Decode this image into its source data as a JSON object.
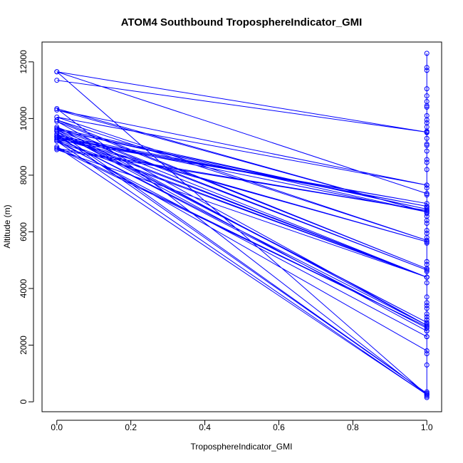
{
  "chart_data": {
    "type": "line",
    "title": "ATOM4 Southbound TroposphereIndicator_GMI",
    "xlabel": "TroposphereIndicator_GMI",
    "ylabel": "Altitude (m)",
    "xlim": [
      -0.04,
      1.04
    ],
    "ylim": [
      -350,
      12700
    ],
    "xticks": [
      0.0,
      0.2,
      0.4,
      0.6,
      0.8,
      1.0
    ],
    "xtick_labels": [
      "0.0",
      "0.2",
      "0.4",
      "0.6",
      "0.8",
      "1.0"
    ],
    "yticks": [
      0,
      2000,
      4000,
      6000,
      8000,
      10000,
      12000
    ],
    "ytick_labels": [
      "0",
      "2000",
      "4000",
      "6000",
      "8000",
      "10000",
      "12000"
    ],
    "grid": false,
    "legend": "none",
    "color": "#0000ff",
    "series": [
      {
        "x": [
          0,
          1,
          0,
          1,
          0,
          1,
          0,
          1,
          0,
          1,
          0,
          1,
          0,
          1,
          0,
          1,
          0,
          1,
          0,
          1,
          0,
          1,
          0,
          1,
          0,
          1,
          0,
          1,
          0,
          1,
          0,
          1,
          0,
          1,
          0,
          1,
          0,
          1,
          0,
          1,
          0,
          1,
          0,
          1,
          0,
          1,
          0,
          1,
          0,
          1,
          0,
          1,
          0,
          1
        ],
        "y": [
          11350,
          9520,
          11650,
          7350,
          11650,
          250,
          10350,
          6700,
          10300,
          7650,
          10050,
          5700,
          9950,
          4700,
          9900,
          2700,
          9700,
          4650,
          9650,
          6800,
          9600,
          2800,
          9550,
          2500,
          9550,
          300,
          9450,
          4400,
          9400,
          6900,
          9350,
          2600,
          9350,
          5650,
          9300,
          7000,
          9250,
          1800,
          9250,
          4400,
          9200,
          2300,
          9200,
          250,
          9000,
          2650,
          8950,
          6750,
          8900,
          4400,
          9600,
          6700,
          9350,
          2700
        ]
      }
    ],
    "right_points": [
      12300,
      11800,
      11700,
      11050,
      10800,
      10600,
      10450,
      10400,
      10100,
      9950,
      9850,
      9700,
      9550,
      9500,
      9300,
      9100,
      9050,
      8850,
      8550,
      8450,
      8200,
      7650,
      7550,
      7350,
      7300,
      6900,
      6850,
      6750,
      6650,
      6550,
      6400,
      6300,
      6050,
      5950,
      5800,
      5650,
      5600,
      4950,
      4850,
      4700,
      4600,
      4400,
      4200,
      3700,
      3500,
      3400,
      3300,
      3100,
      3000,
      2900,
      2750,
      2650,
      2500,
      2300,
      1700,
      1300,
      350,
      300,
      250,
      200,
      150
    ]
  }
}
